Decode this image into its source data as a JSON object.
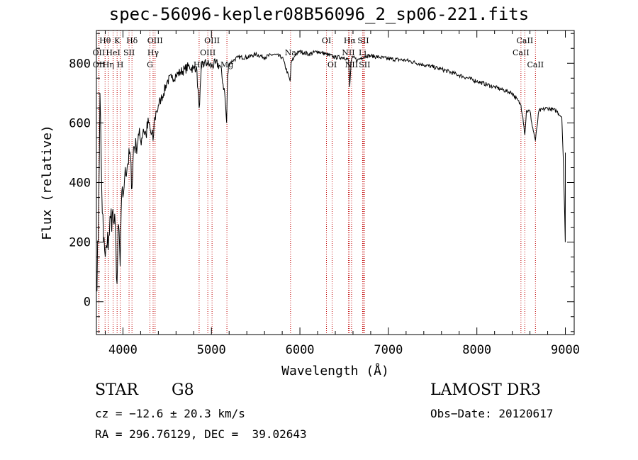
{
  "chart_data": {
    "type": "line",
    "title": "spec-56096-kepler08B56096_2_sp06-221.fits",
    "xlabel": "Wavelength (Å)",
    "ylabel": "Flux (relative)",
    "xlim": [
      3700,
      9100
    ],
    "ylim": [
      -110,
      910
    ],
    "xticks": [
      4000,
      5000,
      6000,
      7000,
      8000,
      9000
    ],
    "yticks": [
      0,
      200,
      400,
      600,
      800
    ],
    "series": [
      {
        "name": "spectrum",
        "x": [
          3700,
          3720,
          3740,
          3760,
          3780,
          3800,
          3820,
          3840,
          3860,
          3880,
          3900,
          3920,
          3933,
          3950,
          3968,
          3980,
          4000,
          4020,
          4050,
          4080,
          4102,
          4120,
          4150,
          4180,
          4200,
          4230,
          4260,
          4290,
          4320,
          4340,
          4360,
          4380,
          4400,
          4430,
          4460,
          4500,
          4550,
          4600,
          4650,
          4700,
          4750,
          4800,
          4830,
          4861,
          4890,
          4920,
          4950,
          5000,
          5050,
          5100,
          5150,
          5172,
          5183,
          5200,
          5250,
          5300,
          5400,
          5500,
          5600,
          5700,
          5800,
          5890,
          5900,
          5950,
          6000,
          6100,
          6200,
          6300,
          6400,
          6500,
          6550,
          6563,
          6580,
          6600,
          6650,
          6700,
          6750,
          6800,
          6900,
          7000,
          7200,
          7400,
          7600,
          7800,
          8000,
          8200,
          8400,
          8498,
          8520,
          8542,
          8560,
          8600,
          8620,
          8662,
          8700,
          8800,
          8900,
          8960,
          8980,
          8999,
          9000
        ],
        "values": [
          50,
          200,
          700,
          380,
          200,
          150,
          180,
          220,
          280,
          300,
          260,
          200,
          60,
          260,
          120,
          300,
          350,
          420,
          460,
          500,
          380,
          520,
          520,
          560,
          540,
          580,
          560,
          600,
          560,
          540,
          620,
          640,
          660,
          680,
          700,
          740,
          750,
          760,
          770,
          780,
          790,
          780,
          790,
          650,
          790,
          800,
          800,
          790,
          800,
          790,
          700,
          600,
          760,
          800,
          810,
          820,
          820,
          830,
          820,
          830,
          820,
          740,
          800,
          830,
          840,
          830,
          840,
          830,
          820,
          820,
          810,
          720,
          810,
          820,
          810,
          820,
          825,
          825,
          820,
          815,
          810,
          795,
          780,
          760,
          740,
          720,
          700,
          660,
          620,
          560,
          640,
          640,
          600,
          540,
          640,
          650,
          640,
          620,
          450,
          200,
          500
        ]
      }
    ],
    "lines": [
      {
        "name": "OII",
        "x": 3727,
        "row": 2
      },
      {
        "name": "OII",
        "x": 3729,
        "row": 3
      },
      {
        "name": "Hθ",
        "x": 3798,
        "row": 1
      },
      {
        "name": "Hη",
        "x": 3835,
        "row": 3
      },
      {
        "name": "HeI",
        "x": 3889,
        "row": 2
      },
      {
        "name": "K",
        "x": 3934,
        "row": 1
      },
      {
        "name": "H",
        "x": 3969,
        "row": 3
      },
      {
        "name": "SII",
        "x": 4069,
        "row": 2
      },
      {
        "name": "Hδ",
        "x": 4102,
        "row": 1
      },
      {
        "name": "OIII",
        "x": 4363,
        "row": 1
      },
      {
        "name": "Hγ",
        "x": 4341,
        "row": 2
      },
      {
        "name": "G",
        "x": 4305,
        "row": 3
      },
      {
        "name": "Hβ",
        "x": 4861,
        "row": 3
      },
      {
        "name": "OIII",
        "x": 4959,
        "row": 2
      },
      {
        "name": "OIII",
        "x": 5007,
        "row": 1
      },
      {
        "name": "Mg",
        "x": 5175,
        "row": 3
      },
      {
        "name": "Na",
        "x": 5894,
        "row": 2
      },
      {
        "name": "OI",
        "x": 6300,
        "row": 1
      },
      {
        "name": "OI",
        "x": 6364,
        "row": 3
      },
      {
        "name": "NII",
        "x": 6548,
        "row": 2
      },
      {
        "name": "Hα",
        "x": 6563,
        "row": 1
      },
      {
        "name": "NII",
        "x": 6584,
        "row": 3
      },
      {
        "name": "Li",
        "x": 6708,
        "row": 2
      },
      {
        "name": "SII",
        "x": 6716,
        "row": 1
      },
      {
        "name": "SII",
        "x": 6731,
        "row": 3
      },
      {
        "name": "CaII",
        "x": 8498,
        "row": 2
      },
      {
        "name": "CaII",
        "x": 8542,
        "row": 1
      },
      {
        "name": "CaII",
        "x": 8662,
        "row": 3
      }
    ]
  },
  "info": {
    "object_class": "STAR",
    "subclass": "G8",
    "survey": "LAMOST DR3",
    "cz": "cz = −12.6 ± 20.3 km/s",
    "obs_date": "Obs−Date: 20120617",
    "coords": "RA = 296.76129, DEC =  39.02643"
  }
}
